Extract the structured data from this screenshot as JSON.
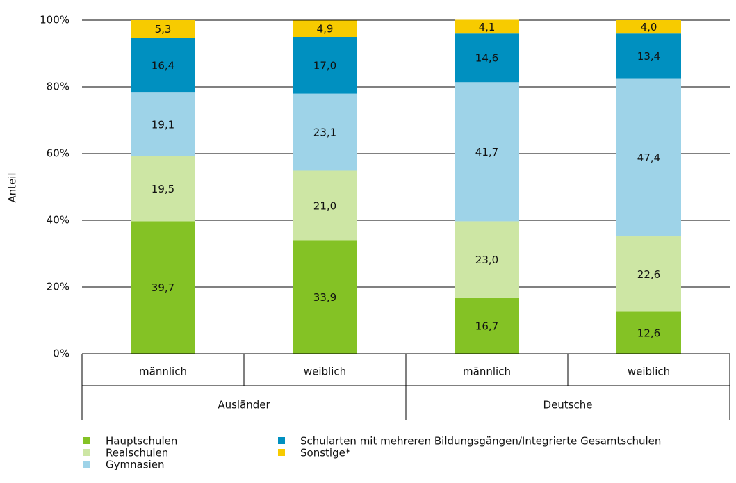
{
  "chart_data": {
    "type": "stacked_bar",
    "y_label": "Anteil",
    "categories": [
      "männlich",
      "weiblich",
      "männlich",
      "weiblich"
    ],
    "groups": [
      "Ausländer",
      "Deutsche"
    ],
    "ylim": [
      0,
      100
    ],
    "yticks": [
      {
        "value": 0,
        "label": "0%"
      },
      {
        "value": 20,
        "label": "20%"
      },
      {
        "value": 40,
        "label": "40%"
      },
      {
        "value": 60,
        "label": "60%"
      },
      {
        "value": 80,
        "label": "80%"
      },
      {
        "value": 100,
        "label": "100%"
      }
    ],
    "grid": true,
    "series": [
      {
        "name": "Hauptschulen",
        "color": "#84c225",
        "values": [
          39.7,
          33.9,
          16.7,
          12.6
        ],
        "value_labels": [
          "39,7",
          "33,9",
          "16,7",
          "12,6"
        ]
      },
      {
        "name": "Realschulen",
        "color": "#cde6a4",
        "values": [
          19.5,
          21.0,
          23.0,
          22.6
        ],
        "value_labels": [
          "19,5",
          "21,0",
          "23,0",
          "22,6"
        ]
      },
      {
        "name": "Gymnasien",
        "color": "#9ed3e8",
        "values": [
          19.1,
          23.1,
          41.7,
          47.4
        ],
        "value_labels": [
          "19,1",
          "23,1",
          "41,7",
          "47,4"
        ]
      },
      {
        "name": "Schularten mit mehreren Bildungsgängen/Integrierte Gesamtschulen",
        "color": "#0090c0",
        "values": [
          16.4,
          17.0,
          14.6,
          13.4
        ],
        "value_labels": [
          "16,4",
          "17,0",
          "14,6",
          "13,4"
        ]
      },
      {
        "name": "Sonstige*",
        "color": "#f7cb00",
        "values": [
          5.3,
          4.9,
          4.1,
          4.0
        ],
        "value_labels": [
          "5,3",
          "4,9",
          "4,1",
          "4,0"
        ]
      }
    ]
  }
}
